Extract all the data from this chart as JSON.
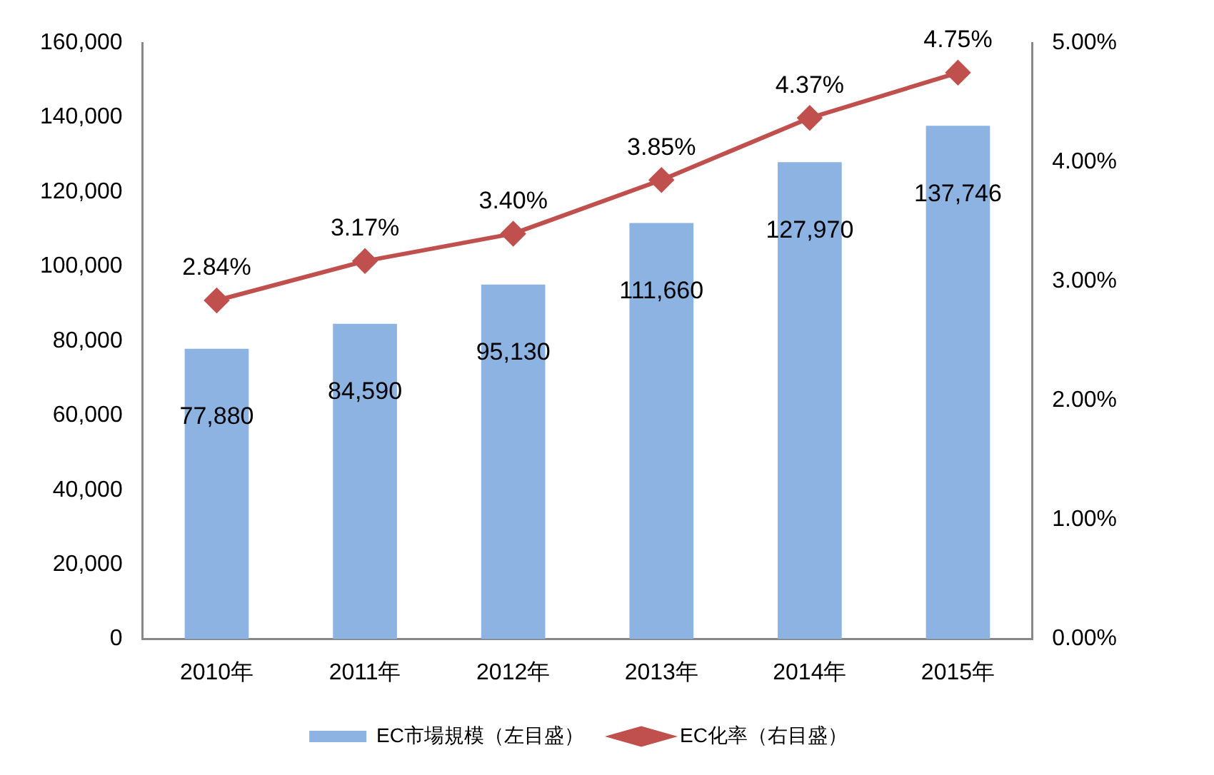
{
  "chart_data": {
    "type": "bar",
    "categories": [
      "2010年",
      "2011年",
      "2012年",
      "2013年",
      "2014年",
      "2015年"
    ],
    "series": [
      {
        "name": "EC市場規模（左目盛）",
        "color": "#8db3e2",
        "values": [
          77880,
          84590,
          95130,
          111660,
          127970,
          137746
        ],
        "value_labels": [
          "77,880",
          "84,590",
          "95,130",
          "111,660",
          "127,970",
          "137,746"
        ]
      },
      {
        "name": "EC化率（右目盛）",
        "type": "line",
        "axis": "y2",
        "color": "#c0504d",
        "marker": "diamond",
        "values": [
          2.84,
          3.17,
          3.4,
          3.85,
          4.37,
          4.75
        ],
        "value_labels": [
          "2.84%",
          "3.17%",
          "3.40%",
          "3.85%",
          "4.37%",
          "4.75%"
        ]
      }
    ],
    "ylim": [
      0,
      160000
    ],
    "yticks": [
      {
        "value": 0,
        "label": "0"
      },
      {
        "value": 20000,
        "label": "20,000"
      },
      {
        "value": 40000,
        "label": "40,000"
      },
      {
        "value": 60000,
        "label": "60,000"
      },
      {
        "value": 80000,
        "label": "80,000"
      },
      {
        "value": 100000,
        "label": "100,000"
      },
      {
        "value": 120000,
        "label": "120,000"
      },
      {
        "value": 140000,
        "label": "140,000"
      },
      {
        "value": 160000,
        "label": "160,000"
      }
    ],
    "y2lim": [
      0,
      5
    ],
    "y2ticks": [
      {
        "value": 0,
        "label": "0.00%"
      },
      {
        "value": 1,
        "label": "1.00%"
      },
      {
        "value": 2,
        "label": "2.00%"
      },
      {
        "value": 3,
        "label": "3.00%"
      },
      {
        "value": 4,
        "label": "4.00%"
      },
      {
        "value": 5,
        "label": "5.00%"
      }
    ],
    "grid": false,
    "legend": "bottom"
  }
}
